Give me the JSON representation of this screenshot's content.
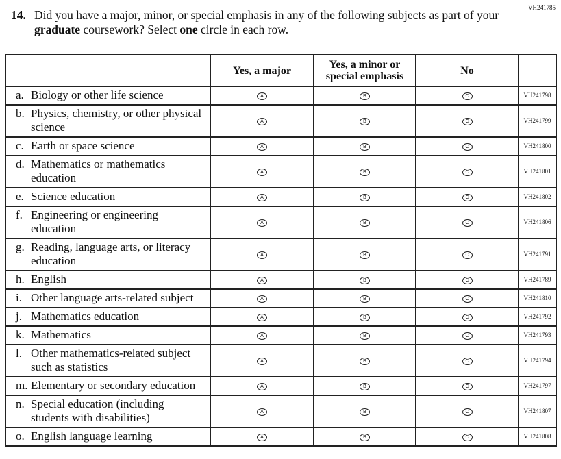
{
  "form_code": "VH241785",
  "question": {
    "number": "14.",
    "parts": [
      "Did you have a major, minor, or special emphasis in any of the following subjects as part of your ",
      "graduate",
      " coursework? Select ",
      "one",
      " circle in each row."
    ]
  },
  "columns": [
    "Yes, a major",
    "Yes, a minor or special emphasis",
    "No"
  ],
  "bubbles": [
    "A",
    "B",
    "C"
  ],
  "rows": [
    {
      "letter": "a.",
      "label": "Biology or other life science",
      "code": "VH241798"
    },
    {
      "letter": "b.",
      "label": "Physics, chemistry, or other physical science",
      "code": "VH241799"
    },
    {
      "letter": "c.",
      "label": "Earth or space science",
      "code": "VH241800"
    },
    {
      "letter": "d.",
      "label": "Mathematics or mathematics education",
      "code": "VH241801"
    },
    {
      "letter": "e.",
      "label": "Science education",
      "code": "VH241802"
    },
    {
      "letter": "f.",
      "label": "Engineering or engineering education",
      "code": "VH241806"
    },
    {
      "letter": "g.",
      "label": "Reading, language arts, or literacy education",
      "code": "VH241791"
    },
    {
      "letter": "h.",
      "label": "English",
      "code": "VH241789"
    },
    {
      "letter": "i.",
      "label": "Other language arts-related subject",
      "code": "VH241810"
    },
    {
      "letter": "j.",
      "label": "Mathematics education",
      "code": "VH241792"
    },
    {
      "letter": "k.",
      "label": "Mathematics",
      "code": "VH241793"
    },
    {
      "letter": "l.",
      "label": "Other mathematics-related subject such as statistics",
      "code": "VH241794"
    },
    {
      "letter": "m.",
      "label": "Elementary or secondary education",
      "code": "VH241797"
    },
    {
      "letter": "n.",
      "label": "Special education (including students with disabilities)",
      "code": "VH241807"
    },
    {
      "letter": "o.",
      "label": "English language learning",
      "code": "VH241808"
    }
  ]
}
